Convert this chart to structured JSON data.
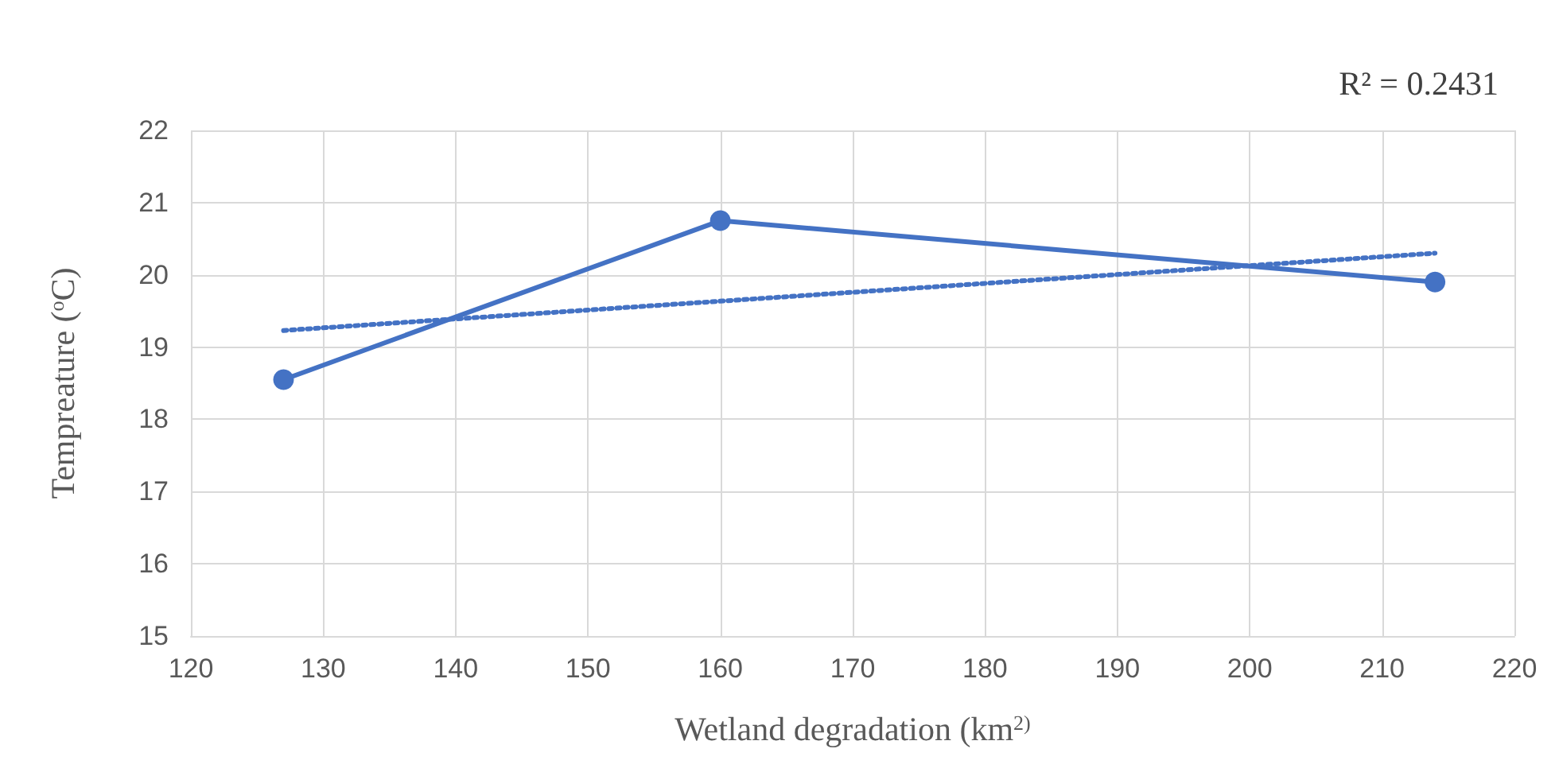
{
  "chart_data": {
    "type": "line",
    "xlabel": "Wetland degradation (km$^{2)}$",
    "ylabel": "Tempreature ($^{o}$C)",
    "annotations": [
      "R² = 0.2431"
    ],
    "series": [
      {
        "color": "#4472c4",
        "x": [
          127,
          160,
          214
        ],
        "values": [
          18.55,
          20.75,
          19.9
        ],
        "marker": "circle",
        "line_style": "solid"
      },
      {
        "color": "#4472c4",
        "x": [
          127,
          214
        ],
        "values": [
          19.23,
          20.3
        ],
        "marker": "none",
        "line_style": "dotted"
      }
    ],
    "xlim": [
      120,
      220
    ],
    "xticks": [
      120,
      130,
      140,
      150,
      160,
      170,
      180,
      190,
      200,
      210,
      220
    ],
    "ylim": [
      15,
      22
    ],
    "yticks": [
      15,
      16,
      17,
      18,
      19,
      20,
      21,
      22
    ],
    "grid": true
  }
}
